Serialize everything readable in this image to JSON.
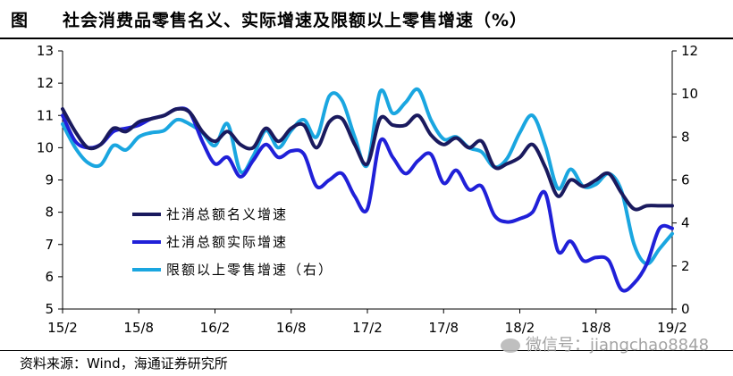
{
  "header": {
    "label": "图",
    "title": "社会消费品零售名义、实际增速及限额以上零售增速（%）"
  },
  "footer": {
    "source": "资料来源：Wind，海通证券研究所",
    "watermark": "微信号：jiangchao8848"
  },
  "chart_data": {
    "type": "line",
    "x": [
      "15/2",
      "15/3",
      "15/4",
      "15/5",
      "15/6",
      "15/7",
      "15/8",
      "15/9",
      "15/10",
      "15/11",
      "15/12",
      "16/1",
      "16/2",
      "16/3",
      "16/4",
      "16/5",
      "16/6",
      "16/7",
      "16/8",
      "16/9",
      "16/10",
      "16/11",
      "16/12",
      "17/1",
      "17/2",
      "17/3",
      "17/4",
      "17/5",
      "17/6",
      "17/7",
      "17/8",
      "17/9",
      "17/10",
      "17/11",
      "17/12",
      "18/1",
      "18/2",
      "18/3",
      "18/4",
      "18/5",
      "18/6",
      "18/7",
      "18/8",
      "18/9",
      "18/10",
      "18/11",
      "18/12",
      "19/1",
      "19/2"
    ],
    "x_tick_labels": [
      "15/2",
      "15/8",
      "16/2",
      "16/8",
      "17/2",
      "17/8",
      "18/2",
      "18/8",
      "19/2"
    ],
    "y_left": {
      "min": 5,
      "max": 13,
      "ticks": [
        5,
        6,
        7,
        8,
        9,
        10,
        11,
        12,
        13
      ]
    },
    "y_right": {
      "min": 0,
      "max": 12,
      "ticks": [
        0,
        2,
        4,
        6,
        8,
        10,
        12
      ]
    },
    "grid": false,
    "legend_position": "bottom-left",
    "series": [
      {
        "name": "社消总额名义增速",
        "axis": "left",
        "color": "#1a1a5e",
        "values": [
          11.2,
          10.5,
          10.0,
          10.1,
          10.6,
          10.5,
          10.8,
          10.9,
          11.0,
          11.2,
          11.1,
          10.5,
          10.2,
          10.5,
          10.1,
          10.0,
          10.6,
          10.2,
          10.6,
          10.7,
          10.0,
          10.8,
          10.9,
          10.1,
          9.5,
          10.9,
          10.7,
          10.7,
          11.0,
          10.4,
          10.1,
          10.3,
          10.0,
          10.2,
          9.4,
          9.5,
          9.7,
          10.1,
          9.4,
          8.5,
          9.0,
          8.8,
          9.0,
          9.2,
          8.6,
          8.1,
          8.2,
          8.2,
          8.2
        ]
      },
      {
        "name": "社消总额实际增速",
        "axis": "left",
        "color": "#2020d8",
        "values": [
          11.0,
          10.2,
          10.0,
          10.1,
          10.5,
          10.6,
          10.7,
          10.9,
          11.0,
          11.2,
          11.1,
          10.2,
          9.5,
          9.7,
          9.1,
          9.6,
          10.1,
          9.7,
          9.9,
          9.8,
          8.8,
          9.0,
          9.2,
          8.5,
          8.1,
          10.2,
          9.7,
          9.2,
          9.6,
          9.8,
          8.9,
          9.3,
          8.7,
          8.8,
          7.9,
          7.7,
          7.8,
          8.0,
          8.6,
          6.8,
          7.1,
          6.5,
          6.6,
          6.5,
          5.6,
          5.8,
          6.4,
          7.5,
          7.5
        ]
      },
      {
        "name": "限额以上零售增速（右）",
        "axis": "right",
        "color": "#1aa6e0",
        "values": [
          8.6,
          7.5,
          6.8,
          6.7,
          7.6,
          7.4,
          8.0,
          8.2,
          8.3,
          8.8,
          8.6,
          8.2,
          7.6,
          8.6,
          6.4,
          7.1,
          8.3,
          7.5,
          8.3,
          8.8,
          8.0,
          9.9,
          9.7,
          8.0,
          6.7,
          10.1,
          9.1,
          9.6,
          10.2,
          8.8,
          7.9,
          8.0,
          7.5,
          7.3,
          6.6,
          7.0,
          8.2,
          9.0,
          7.6,
          5.6,
          6.5,
          5.7,
          5.8,
          6.3,
          5.5,
          3.0,
          2.1,
          2.8,
          3.5
        ]
      }
    ]
  }
}
